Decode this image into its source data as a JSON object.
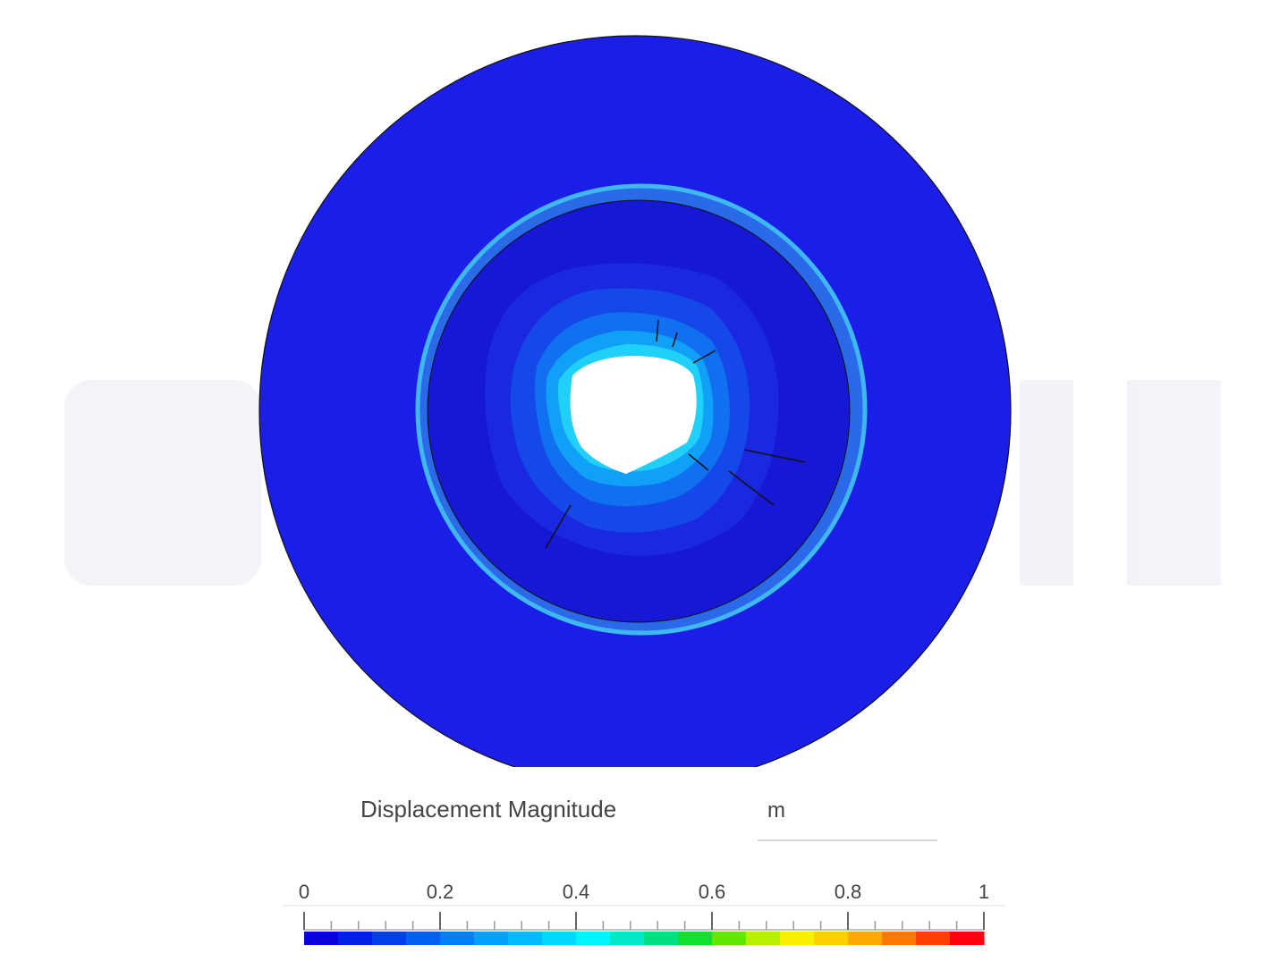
{
  "legend": {
    "title": "Displacement Magnitude",
    "unit": "m",
    "ticks": [
      0,
      0.2,
      0.4,
      0.6,
      0.8,
      1
    ],
    "colors": [
      "#0a00dc",
      "#0020e4",
      "#0040ec",
      "#0060f2",
      "#0080f8",
      "#00a0fc",
      "#00bcff",
      "#00d8ff",
      "#00f4ff",
      "#00e8c8",
      "#00e080",
      "#10e030",
      "#60e800",
      "#b8f000",
      "#f8f000",
      "#ffd000",
      "#ffa800",
      "#ff7800",
      "#ff4000",
      "#ff0010"
    ]
  }
}
